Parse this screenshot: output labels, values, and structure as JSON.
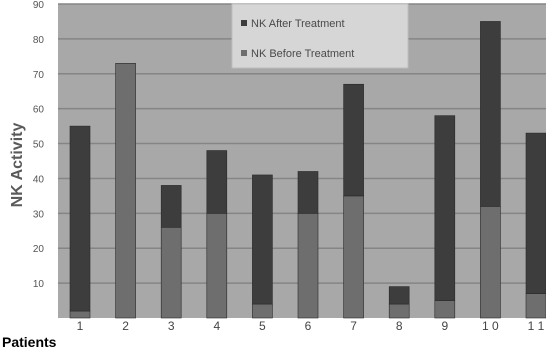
{
  "chart_data": {
    "type": "bar",
    "stacked": true,
    "categories": [
      "1",
      "2",
      "3",
      "4",
      "5",
      "6",
      "7",
      "8",
      "9",
      "1 0",
      "1 1"
    ],
    "series": [
      {
        "name": "NK Before Treatment",
        "values": [
          2,
          73,
          26,
          30,
          4,
          30,
          35,
          4,
          5,
          32,
          7
        ],
        "color": "#6e6e6e"
      },
      {
        "name": "NK After Treatment",
        "values": [
          53,
          0,
          12,
          18,
          37,
          12,
          32,
          5,
          53,
          53,
          46
        ],
        "color": "#3d3d3d"
      }
    ],
    "xlabel": "Patients",
    "ylabel": "NK Activity",
    "ylim": [
      0,
      90
    ],
    "yticks": [
      "10",
      "20",
      "30",
      "40",
      "50",
      "60",
      "70",
      "80",
      "90"
    ],
    "grid": true,
    "legend_position": "top-center",
    "plot_background": "#a8a8a8",
    "gridline_color": "#858585"
  }
}
